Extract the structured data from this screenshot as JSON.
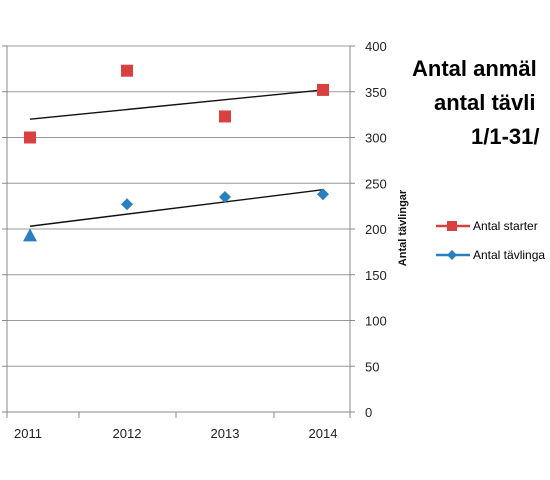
{
  "chart_data": {
    "type": "line",
    "title_lines": [
      "Antal anmäl",
      "antal tävli",
      "1/1-31/"
    ],
    "ylabel_right": "Antal tävlingar",
    "categories": [
      "2011",
      "2012",
      "2013",
      "2014"
    ],
    "y_right": {
      "min": 0,
      "max": 400,
      "step": 50,
      "ticks": [
        "0",
        "50",
        "100",
        "150",
        "200",
        "250",
        "300",
        "350",
        "400"
      ]
    },
    "grid": true,
    "legend_position": "right",
    "series": [
      {
        "name": "Antal starter",
        "marker": "square",
        "color": "#d94040",
        "values": [
          300,
          373,
          323,
          352
        ],
        "trend": [
          320,
          352
        ]
      },
      {
        "name": "Antal tävlinga",
        "marker": "diamond",
        "color": "#2a7fc0",
        "values": [
          193,
          227,
          235,
          238
        ],
        "trend": [
          203,
          243
        ]
      }
    ]
  }
}
